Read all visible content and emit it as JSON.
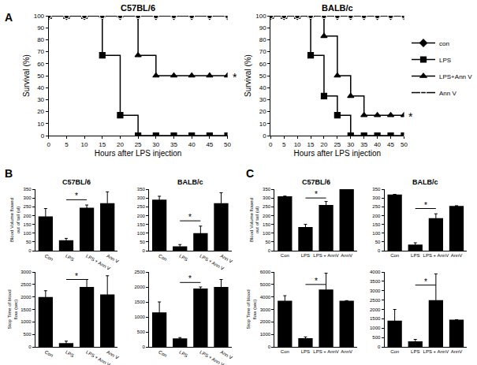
{
  "chart_data": [
    {
      "type": "line",
      "panel": "A",
      "title": "C57BL/6",
      "xlabel": "Hours after LPS injection",
      "ylabel": "Survival (%)",
      "x": [
        0,
        5,
        10,
        15,
        20,
        25,
        30,
        35,
        40,
        45,
        50
      ],
      "series": [
        {
          "name": "con",
          "color": "#000000",
          "marker": "diamond",
          "values": [
            100,
            100,
            100,
            100,
            100,
            100,
            100,
            100,
            100,
            100,
            100
          ]
        },
        {
          "name": "LPS",
          "color": "#000000",
          "marker": "square",
          "values": [
            100,
            100,
            100,
            67,
            17,
            0,
            0,
            0,
            0,
            0,
            0
          ]
        },
        {
          "name": "LPS+Ann V",
          "color": "#000000",
          "marker": "triangle-up",
          "values": [
            100,
            100,
            100,
            100,
            100,
            67,
            50,
            50,
            50,
            50,
            50
          ]
        },
        {
          "name": "Ann V",
          "color": "#000000",
          "marker": "circle-open",
          "values": [
            100,
            100,
            100,
            100,
            100,
            100,
            100,
            100,
            100,
            100,
            100
          ]
        }
      ],
      "xlim": [
        0,
        50
      ],
      "xticks": [
        0,
        5,
        10,
        15,
        20,
        25,
        30,
        35,
        40,
        45,
        50
      ],
      "ylim": [
        0,
        100
      ],
      "yticks": [
        0,
        10,
        20,
        30,
        40,
        50,
        60,
        70,
        80,
        90,
        100
      ],
      "annotations": [
        {
          "text": "*",
          "x": 50,
          "y": 50
        }
      ]
    },
    {
      "type": "line",
      "title": "BALB/c",
      "xlabel": "Hours after LPS injection",
      "ylabel": "Survival (%)",
      "x": [
        0,
        5,
        10,
        15,
        20,
        25,
        30,
        35,
        40,
        45,
        50
      ],
      "series": [
        {
          "name": "con",
          "color": "#000000",
          "marker": "diamond",
          "values": [
            100,
            100,
            100,
            100,
            100,
            100,
            100,
            100,
            100,
            100,
            100
          ]
        },
        {
          "name": "LPS",
          "color": "#000000",
          "marker": "square",
          "values": [
            100,
            100,
            100,
            67,
            33,
            17,
            0,
            0,
            0,
            0,
            0
          ]
        },
        {
          "name": "LPS+Ann V",
          "color": "#000000",
          "marker": "triangle-up",
          "values": [
            100,
            100,
            100,
            100,
            83,
            50,
            33,
            17,
            17,
            17,
            17
          ]
        },
        {
          "name": "Ann V",
          "color": "#000000",
          "marker": "circle-open",
          "values": [
            100,
            100,
            100,
            100,
            100,
            100,
            100,
            100,
            100,
            100,
            100
          ]
        }
      ],
      "xlim": [
        0,
        50
      ],
      "xticks": [
        0,
        5,
        10,
        15,
        20,
        25,
        30,
        35,
        40,
        45,
        50
      ],
      "ylim": [
        0,
        100
      ],
      "yticks": [
        0,
        10,
        20,
        30,
        40,
        50,
        60,
        70,
        80,
        90,
        100
      ],
      "legend": "right",
      "annotations": [
        {
          "text": "*",
          "x": 50,
          "y": 17
        }
      ]
    },
    {
      "type": "bar",
      "panel": "B",
      "title": "C57BL/6",
      "ylabel": "Blood Volume flowed out of tail (ul)",
      "categories": [
        "Con",
        "LPS",
        "LPS + Ann V",
        "Ann V"
      ],
      "values": [
        195,
        60,
        245,
        270
      ],
      "errors": [
        45,
        10,
        15,
        65
      ],
      "color": "#000000",
      "ylim": [
        0,
        350
      ],
      "yticks": [
        0,
        50,
        100,
        150,
        200,
        250,
        300,
        350
      ],
      "significance": [
        {
          "from": "LPS",
          "to": "LPS + Ann V",
          "y": 290,
          "label": "*"
        }
      ]
    },
    {
      "type": "bar",
      "ylabel": "Stop Time of blood flow (sec)",
      "categories": [
        "Con",
        "LPS",
        "LPS + Ann V",
        "Ann V"
      ],
      "values": [
        2000,
        150,
        2400,
        2100
      ],
      "errors": [
        250,
        80,
        300,
        750
      ],
      "color": "#000000",
      "ylim": [
        0,
        3000
      ],
      "yticks": [
        0,
        500,
        1000,
        1500,
        2000,
        2500,
        3000
      ],
      "significance": [
        {
          "from": "LPS",
          "to": "LPS + Ann V",
          "y": 2700,
          "label": "*"
        }
      ]
    },
    {
      "type": "bar",
      "title": "BALB/c",
      "categories": [
        "Con",
        "LPS",
        "LPS + Ann V",
        "Ann V"
      ],
      "values": [
        290,
        25,
        100,
        270
      ],
      "errors": [
        20,
        10,
        40,
        60
      ],
      "color": "#000000",
      "ylim": [
        0,
        350
      ],
      "yticks": [
        0,
        50,
        100,
        150,
        200,
        250,
        300,
        350
      ],
      "significance": [
        {
          "from": "LPS",
          "to": "LPS + Ann V",
          "y": 170,
          "label": "*"
        }
      ]
    },
    {
      "type": "bar",
      "categories": [
        "Con",
        "LPS",
        "LPS + Ann V",
        "Ann V"
      ],
      "values": [
        1150,
        280,
        1950,
        2000
      ],
      "errors": [
        350,
        30,
        50,
        250
      ],
      "color": "#000000",
      "ylim": [
        0,
        2500
      ],
      "yticks": [
        0,
        500,
        1000,
        1500,
        2000,
        2500
      ],
      "significance": [
        {
          "from": "LPS",
          "to": "LPS + Ann V",
          "y": 2150,
          "label": "*"
        }
      ]
    },
    {
      "type": "bar",
      "panel": "C",
      "title": "C57BL/6",
      "ylabel": "Blood Volume flowed out of tail (ul)",
      "categories": [
        "Con",
        "LPS",
        "LPS + AnnV",
        "AnnV"
      ],
      "values": [
        310,
        135,
        260,
        350
      ],
      "errors": [
        0,
        15,
        20,
        0
      ],
      "color": "#000000",
      "ylim": [
        0,
        350
      ],
      "yticks": [
        0,
        50,
        100,
        150,
        200,
        250,
        300,
        350
      ],
      "significance": [
        {
          "from": "LPS",
          "to": "LPS + AnnV",
          "y": 300,
          "label": "*"
        }
      ]
    },
    {
      "type": "bar",
      "ylabel": "Stop Time of blood flow (sec)",
      "categories": [
        "Con",
        "LPS",
        "LPS + AnnV",
        "AnnV"
      ],
      "values": [
        3700,
        700,
        4600,
        3700
      ],
      "errors": [
        400,
        100,
        1300,
        0
      ],
      "color": "#000000",
      "ylim": [
        0,
        6000
      ],
      "yticks": [
        0,
        1000,
        2000,
        3000,
        4000,
        5000,
        6000
      ],
      "significance": [
        {
          "from": "LPS",
          "to": "LPS + AnnV",
          "y": 5000,
          "label": "*"
        }
      ]
    },
    {
      "type": "bar",
      "title": "BALB/c",
      "categories": [
        "Con",
        "LPS",
        "LPS + AnnV",
        "AnnV"
      ],
      "values": [
        320,
        35,
        185,
        255
      ],
      "errors": [
        0,
        10,
        25,
        0
      ],
      "color": "#000000",
      "ylim": [
        0,
        350
      ],
      "yticks": [
        0,
        50,
        100,
        150,
        200,
        250,
        300,
        350
      ],
      "significance": [
        {
          "from": "LPS",
          "to": "LPS + AnnV",
          "y": 240,
          "label": "*"
        }
      ]
    },
    {
      "type": "bar",
      "categories": [
        "Con",
        "LPS",
        "LPS + AnnV",
        "AnnV"
      ],
      "values": [
        1400,
        300,
        2500,
        1450
      ],
      "errors": [
        600,
        100,
        1400,
        0
      ],
      "color": "#000000",
      "ylim": [
        0,
        4000
      ],
      "yticks": [
        0,
        500,
        1000,
        1500,
        2000,
        2500,
        3000,
        3500,
        4000
      ],
      "significance": [
        {
          "from": "LPS",
          "to": "LPS + AnnV",
          "y": 3300,
          "label": "*"
        }
      ]
    }
  ]
}
